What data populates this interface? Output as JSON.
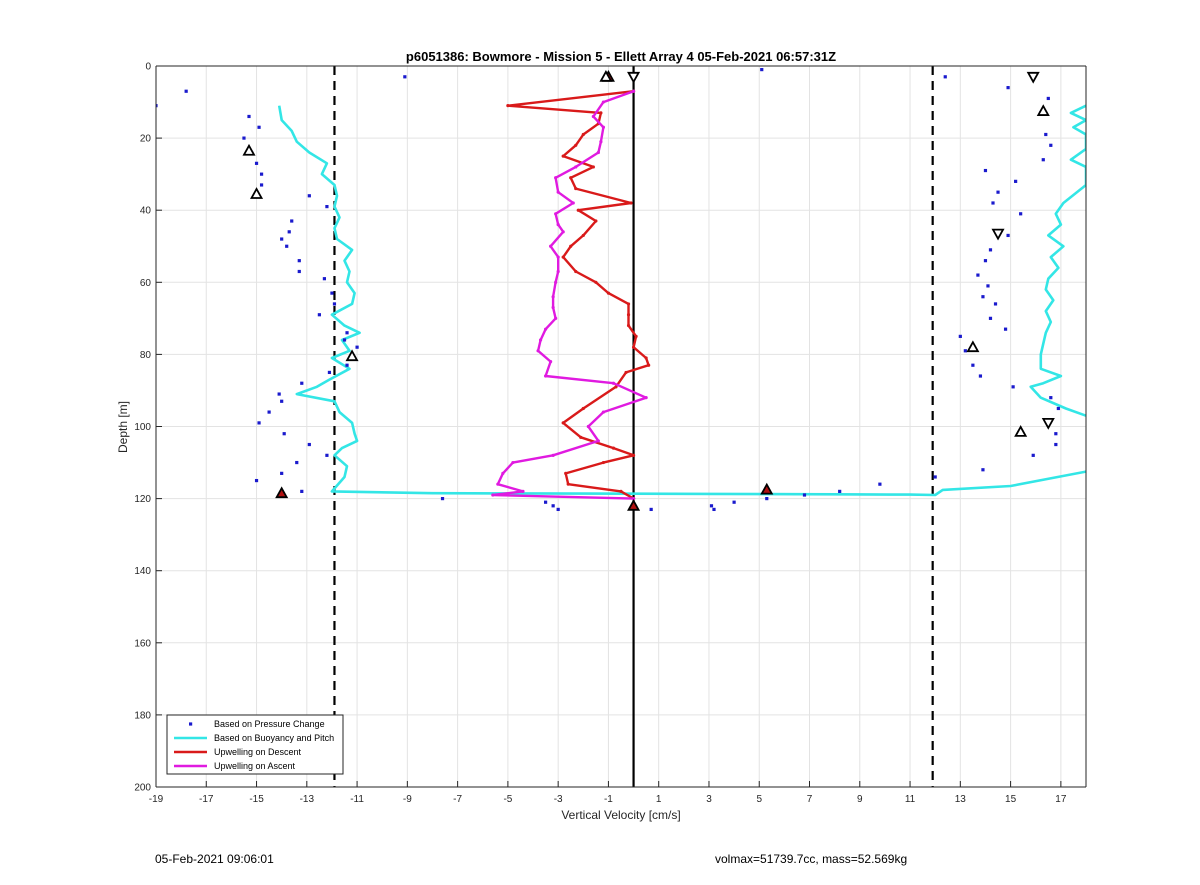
{
  "chart_data": {
    "type": "line",
    "title": "p6051386: Bowmore - Mission 5 - Ellett Array 4 05-Feb-2021 06:57:31Z",
    "xlabel": "Vertical Velocity [cm/s]",
    "ylabel": "Depth [m]",
    "xlim": [
      -19,
      18
    ],
    "ylim": [
      0,
      200
    ],
    "y_reversed": true,
    "xticks": [
      -19,
      -17,
      -15,
      -13,
      -11,
      -9,
      -7,
      -5,
      -3,
      -1,
      1,
      3,
      5,
      7,
      9,
      11,
      13,
      15,
      17
    ],
    "yticks": [
      0,
      20,
      40,
      60,
      80,
      100,
      120,
      140,
      160,
      180,
      200
    ],
    "grid": true,
    "legend_position": "bottom-left",
    "colors": {
      "pressure": "#1a1acd",
      "buoyancy": "#33e6e6",
      "descent": "#d91a1a",
      "ascent": "#e01ae0",
      "reference_lines": "#000000"
    },
    "reference_lines": {
      "dashed_x": [
        -11.9,
        11.9
      ],
      "solid_x": 0
    },
    "series": [
      {
        "name": "Based on Pressure Change",
        "style": "markers",
        "points": [
          [
            -19.0,
            11
          ],
          [
            -17.8,
            7
          ],
          [
            -9.1,
            3
          ],
          [
            5.1,
            1
          ],
          [
            12.4,
            3
          ],
          [
            14.9,
            6
          ],
          [
            -15.3,
            14
          ],
          [
            -14.9,
            17
          ],
          [
            -15.5,
            20
          ],
          [
            -15.2,
            24
          ],
          [
            -15.0,
            27
          ],
          [
            -14.8,
            30
          ],
          [
            -14.8,
            33
          ],
          [
            16.5,
            9
          ],
          [
            16.2,
            13
          ],
          [
            16.4,
            19
          ],
          [
            16.6,
            22
          ],
          [
            16.3,
            26
          ],
          [
            14.0,
            29
          ],
          [
            15.2,
            32
          ],
          [
            14.5,
            35
          ],
          [
            14.3,
            38
          ],
          [
            -12.9,
            36
          ],
          [
            -12.2,
            39
          ],
          [
            -13.6,
            43
          ],
          [
            -13.7,
            46
          ],
          [
            -14.0,
            48
          ],
          [
            -13.8,
            50
          ],
          [
            -13.3,
            54
          ],
          [
            -13.3,
            57
          ],
          [
            -12.3,
            59
          ],
          [
            15.4,
            41
          ],
          [
            14.9,
            47
          ],
          [
            14.2,
            51
          ],
          [
            14.0,
            54
          ],
          [
            13.7,
            58
          ],
          [
            14.1,
            61
          ],
          [
            13.9,
            64
          ],
          [
            14.4,
            66
          ],
          [
            14.2,
            70
          ],
          [
            14.8,
            73
          ],
          [
            -12.0,
            63
          ],
          [
            -11.9,
            66
          ],
          [
            -12.5,
            69
          ],
          [
            -11.4,
            74
          ],
          [
            -11.5,
            76
          ],
          [
            -11.0,
            78
          ],
          [
            -11.4,
            83
          ],
          [
            -12.1,
            85
          ],
          [
            -13.2,
            88
          ],
          [
            13.0,
            75
          ],
          [
            13.2,
            79
          ],
          [
            13.5,
            83
          ],
          [
            13.8,
            86
          ],
          [
            15.1,
            89
          ],
          [
            16.6,
            92
          ],
          [
            16.9,
            95
          ],
          [
            -14.1,
            91
          ],
          [
            -14.0,
            93
          ],
          [
            -14.5,
            96
          ],
          [
            -14.9,
            99
          ],
          [
            -13.9,
            102
          ],
          [
            -12.9,
            105
          ],
          [
            -12.2,
            108
          ],
          [
            -13.4,
            110
          ],
          [
            -14.0,
            113
          ],
          [
            -15.0,
            115
          ],
          [
            16.8,
            102
          ],
          [
            16.8,
            105
          ],
          [
            15.9,
            108
          ],
          [
            13.9,
            112
          ],
          [
            12.0,
            114
          ],
          [
            9.8,
            116
          ],
          [
            8.2,
            118
          ],
          [
            6.8,
            119
          ],
          [
            5.3,
            120
          ],
          [
            4.0,
            121
          ],
          [
            -13.2,
            118
          ],
          [
            -7.6,
            120
          ],
          [
            -3.5,
            121
          ],
          [
            -3.2,
            122
          ],
          [
            -3.0,
            123
          ],
          [
            0.7,
            123
          ],
          [
            3.1,
            122
          ],
          [
            3.2,
            123
          ]
        ]
      },
      {
        "name": "Based on Buoyancy and Pitch",
        "style": "line",
        "segments": [
          [
            [
              -14.1,
              11
            ],
            [
              -14.0,
              15
            ],
            [
              -13.6,
              18
            ],
            [
              -13.4,
              21
            ],
            [
              -12.9,
              24
            ],
            [
              -12.2,
              27
            ],
            [
              -12.4,
              30
            ],
            [
              -11.9,
              33
            ],
            [
              -11.8,
              36
            ],
            [
              -11.9,
              39
            ],
            [
              -11.7,
              42
            ],
            [
              -11.9,
              45
            ],
            [
              -11.8,
              48
            ],
            [
              -11.2,
              51
            ],
            [
              -11.5,
              54
            ],
            [
              -11.3,
              57
            ],
            [
              -11.4,
              60
            ],
            [
              -11.1,
              63
            ],
            [
              -11.2,
              66
            ],
            [
              -12.0,
              69
            ],
            [
              -11.5,
              72
            ],
            [
              -10.9,
              74
            ],
            [
              -11.6,
              76
            ],
            [
              -11.3,
              79
            ],
            [
              -12.0,
              81
            ],
            [
              -11.3,
              84
            ],
            [
              -12.1,
              87
            ],
            [
              -12.6,
              89
            ],
            [
              -13.4,
              91
            ],
            [
              -11.9,
              93
            ],
            [
              -11.7,
              96
            ],
            [
              -11.2,
              99
            ],
            [
              -11.1,
              102
            ],
            [
              -11.0,
              104
            ],
            [
              -11.6,
              106
            ],
            [
              -11.9,
              108
            ],
            [
              -11.4,
              111
            ],
            [
              -11.5,
              114
            ],
            [
              -12.0,
              118
            ],
            [
              -8.0,
              118.5
            ],
            [
              -2.0,
              118.6
            ],
            [
              3.0,
              118.7
            ],
            [
              8.0,
              118.8
            ],
            [
              11.0,
              118.9
            ],
            [
              12.0,
              119
            ],
            [
              12.3,
              117.6
            ],
            [
              15.0,
              116.5
            ],
            [
              18.0,
              112.5
            ]
          ],
          [
            [
              18.0,
              11
            ],
            [
              17.4,
              13
            ],
            [
              18.0,
              15
            ],
            [
              17.5,
              17
            ],
            [
              18.0,
              19
            ],
            [
              18.0,
              23
            ],
            [
              17.4,
              26
            ],
            [
              18.0,
              28
            ],
            [
              18.0,
              33
            ],
            [
              17.1,
              38
            ],
            [
              16.8,
              41
            ],
            [
              17.0,
              44
            ],
            [
              16.5,
              47
            ],
            [
              17.1,
              50
            ],
            [
              16.6,
              53
            ],
            [
              16.9,
              56
            ],
            [
              16.5,
              59
            ],
            [
              16.4,
              62
            ],
            [
              16.7,
              65
            ],
            [
              16.4,
              68
            ],
            [
              16.6,
              71
            ],
            [
              16.4,
              74
            ],
            [
              16.3,
              77
            ],
            [
              16.2,
              80
            ],
            [
              16.2,
              84
            ],
            [
              17.0,
              86
            ],
            [
              16.3,
              88
            ],
            [
              15.8,
              89
            ],
            [
              16.2,
              92
            ],
            [
              17.2,
              95
            ],
            [
              18.0,
              97
            ]
          ]
        ]
      },
      {
        "name": "Upwelling on Descent",
        "style": "line",
        "points": [
          [
            0.0,
            7
          ],
          [
            -5.0,
            11
          ],
          [
            -1.3,
            13
          ],
          [
            -1.4,
            16
          ],
          [
            -2.0,
            19
          ],
          [
            -2.3,
            22
          ],
          [
            -2.8,
            25
          ],
          [
            -1.6,
            28
          ],
          [
            -2.5,
            31
          ],
          [
            -2.3,
            34
          ],
          [
            -0.1,
            38
          ],
          [
            -2.2,
            40
          ],
          [
            -1.5,
            43
          ],
          [
            -2.0,
            47
          ],
          [
            -2.5,
            50
          ],
          [
            -2.8,
            53
          ],
          [
            -2.3,
            57
          ],
          [
            -1.5,
            60
          ],
          [
            -1.0,
            63
          ],
          [
            -0.2,
            66
          ],
          [
            -0.2,
            69
          ],
          [
            -0.2,
            72
          ],
          [
            0.1,
            75
          ],
          [
            0.0,
            78
          ],
          [
            0.5,
            81
          ],
          [
            0.6,
            83
          ],
          [
            -0.3,
            85
          ],
          [
            -0.7,
            89
          ],
          [
            -2.0,
            95
          ],
          [
            -2.8,
            99
          ],
          [
            -2.1,
            103
          ],
          [
            -0.8,
            106
          ],
          [
            0.0,
            108
          ],
          [
            -1.2,
            110
          ],
          [
            -2.7,
            113
          ],
          [
            -2.6,
            116
          ],
          [
            -0.5,
            118
          ],
          [
            0.0,
            120
          ]
        ],
        "markers": [
          [
            -1.0,
            3
          ],
          [
            5.3,
            117.5
          ],
          [
            -14.0,
            118.5
          ],
          [
            0.0,
            122
          ]
        ]
      },
      {
        "name": "Upwelling on Ascent",
        "style": "line",
        "points": [
          [
            0.0,
            7
          ],
          [
            -1.2,
            10
          ],
          [
            -1.6,
            14
          ],
          [
            -1.2,
            17
          ],
          [
            -1.3,
            21
          ],
          [
            -1.4,
            24
          ],
          [
            -2.3,
            28
          ],
          [
            -3.1,
            31
          ],
          [
            -3.0,
            35
          ],
          [
            -2.4,
            38
          ],
          [
            -3.1,
            41
          ],
          [
            -3.0,
            44
          ],
          [
            -2.8,
            46
          ],
          [
            -3.3,
            50
          ],
          [
            -3.0,
            53
          ],
          [
            -3.0,
            57
          ],
          [
            -3.1,
            60
          ],
          [
            -3.2,
            64
          ],
          [
            -3.2,
            67
          ],
          [
            -3.1,
            70
          ],
          [
            -3.5,
            73
          ],
          [
            -3.7,
            76
          ],
          [
            -3.8,
            79
          ],
          [
            -3.3,
            82
          ],
          [
            -3.5,
            86
          ],
          [
            -0.8,
            88
          ],
          [
            0.5,
            92
          ],
          [
            -1.2,
            96
          ],
          [
            -1.8,
            100
          ],
          [
            -1.4,
            104
          ],
          [
            -3.2,
            108
          ],
          [
            -4.8,
            110
          ],
          [
            -5.2,
            113
          ],
          [
            -5.4,
            116
          ],
          [
            -4.4,
            118
          ],
          [
            -5.6,
            119
          ],
          [
            0.0,
            120
          ]
        ],
        "markers": [
          [
            -1.1,
            3
          ],
          [
            0.0,
            3
          ],
          [
            -15.3,
            23.5
          ],
          [
            -15.0,
            35.5
          ],
          [
            -11.2,
            80.5
          ],
          [
            15.9,
            3
          ],
          [
            16.3,
            12.5
          ],
          [
            14.5,
            46.5
          ],
          [
            13.5,
            78
          ],
          [
            16.5,
            99
          ],
          [
            15.4,
            101.5
          ]
        ]
      }
    ]
  },
  "footer": {
    "left": "05-Feb-2021 09:06:01",
    "right": "volmax=51739.7cc, mass=52.569kg"
  }
}
